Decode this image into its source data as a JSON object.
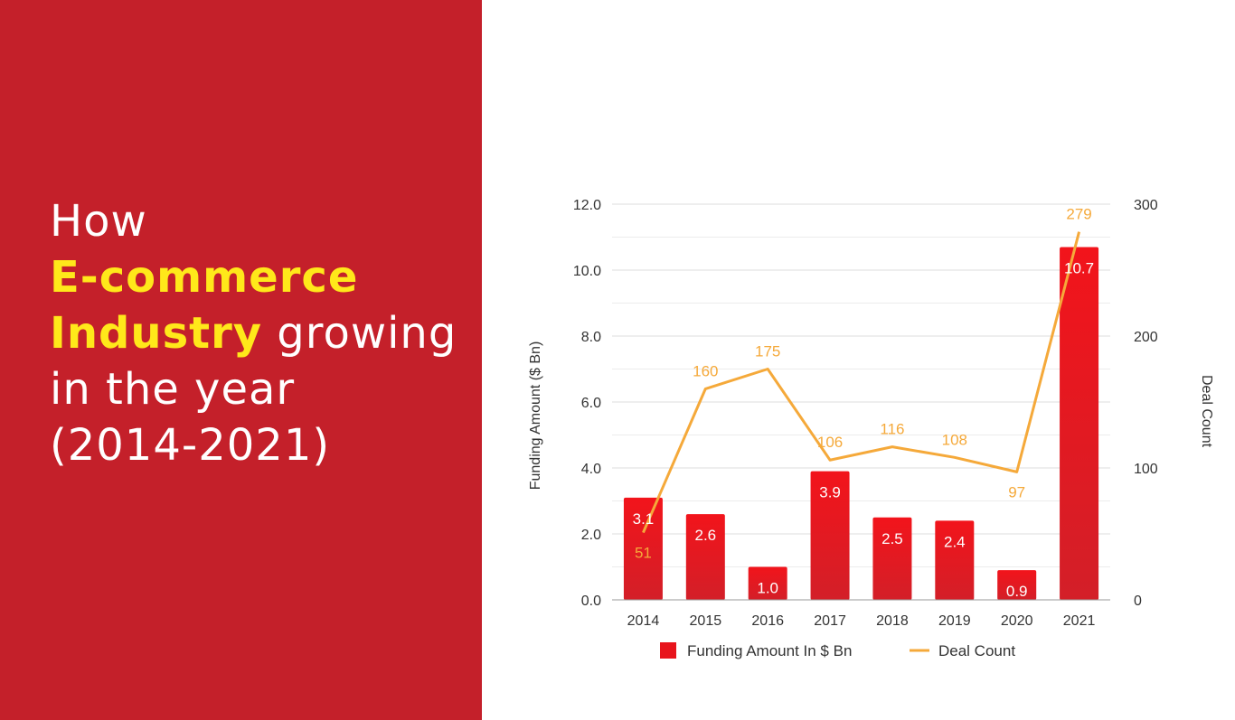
{
  "headline": {
    "line1": "How",
    "highlight1": "E-commerce",
    "highlight2": "Industry",
    "rest2": " growing",
    "line4": "in the year",
    "line5": "(2014-2021)"
  },
  "colors": {
    "panel": "#c4202a",
    "highlight": "#ffe81a",
    "bar": "#e8141c",
    "line": "#f5a93a",
    "bar_label": "#ffffff"
  },
  "chart_data": {
    "type": "bar",
    "categories": [
      "2014",
      "2015",
      "2016",
      "2017",
      "2018",
      "2019",
      "2020",
      "2021"
    ],
    "series": [
      {
        "name": "Funding Amount In $ Bn",
        "type": "bar",
        "axis": "left",
        "values": [
          3.1,
          2.6,
          1.0,
          3.9,
          2.5,
          2.4,
          0.9,
          10.7
        ],
        "labels": [
          "3.1",
          "2.6",
          "1.0",
          "3.9",
          "2.5",
          "2.4",
          "0.9",
          "10.7"
        ]
      },
      {
        "name": "Deal Count",
        "type": "line",
        "axis": "right",
        "values": [
          51,
          160,
          175,
          106,
          116,
          108,
          97,
          279
        ],
        "labels": [
          "51",
          "160",
          "175",
          "106",
          "116",
          "108",
          "97",
          "279"
        ]
      }
    ],
    "ylabel": "Funding Amount ($ Bn)",
    "y2label": "Deal Count",
    "ylim": [
      0,
      12
    ],
    "y2lim": [
      0,
      300
    ],
    "yticks": [
      "0.0",
      "2.0",
      "4.0",
      "6.0",
      "8.0",
      "10.0",
      "12.0"
    ],
    "y2ticks": [
      "0",
      "100",
      "200",
      "300"
    ],
    "grid": true,
    "legend_position": "bottom"
  }
}
